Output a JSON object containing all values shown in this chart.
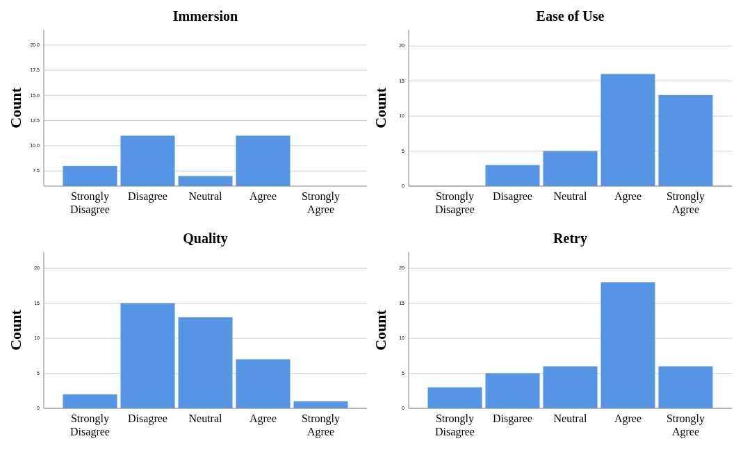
{
  "chart_data": [
    {
      "type": "bar",
      "title": "Immersion",
      "ylabel": "Count",
      "categories": [
        "Strongly Disagree",
        "Disagree",
        "Neutral",
        "Agree",
        "Strongly Agree"
      ],
      "values": [
        8,
        11,
        7,
        11,
        null
      ],
      "color": "#5595e3",
      "ylim": [
        6,
        21.5
      ],
      "yticks": [
        {
          "value": 7.5,
          "label": "7.5"
        },
        {
          "value": 10,
          "label": "10.0"
        },
        {
          "value": 12.5,
          "label": "12.5"
        },
        {
          "value": 15,
          "label": "15.0"
        },
        {
          "value": 17.5,
          "label": "17.5"
        },
        {
          "value": 20,
          "label": "20.0"
        }
      ],
      "grid": "y"
    },
    {
      "type": "bar",
      "title": "Ease of Use",
      "ylabel": "Count",
      "categories": [
        "Strongly Disagree",
        "Disagree",
        "Neutral",
        "Agree",
        "Strongly Agree"
      ],
      "values": [
        0,
        3,
        5,
        16,
        13
      ],
      "color": "#5595e3",
      "ylim": [
        0,
        22.3
      ],
      "yticks": [
        0,
        5,
        10,
        15,
        20
      ],
      "grid": "y"
    },
    {
      "type": "bar",
      "title": "Quality",
      "ylabel": "Count",
      "categories": [
        "Strongly Disagree",
        "Disagree",
        "Neutral",
        "Agree",
        "Strongly Agree"
      ],
      "values": [
        2,
        15,
        13,
        7,
        1
      ],
      "color": "#5595e3",
      "ylim": [
        0,
        22.3
      ],
      "yticks": [
        0,
        5,
        10,
        15,
        20
      ],
      "grid": "y"
    },
    {
      "type": "bar",
      "title": "Retry",
      "ylabel": "Count",
      "categories": [
        "Strongly Disagree",
        "Disgaree",
        "Neutral",
        "Agree",
        "Strongly Agree"
      ],
      "values": [
        3,
        5,
        6,
        18,
        6
      ],
      "color": "#5595e3",
      "ylim": [
        0,
        22.3
      ],
      "yticks": [
        0,
        5,
        10,
        15,
        20
      ],
      "grid": "y"
    }
  ]
}
